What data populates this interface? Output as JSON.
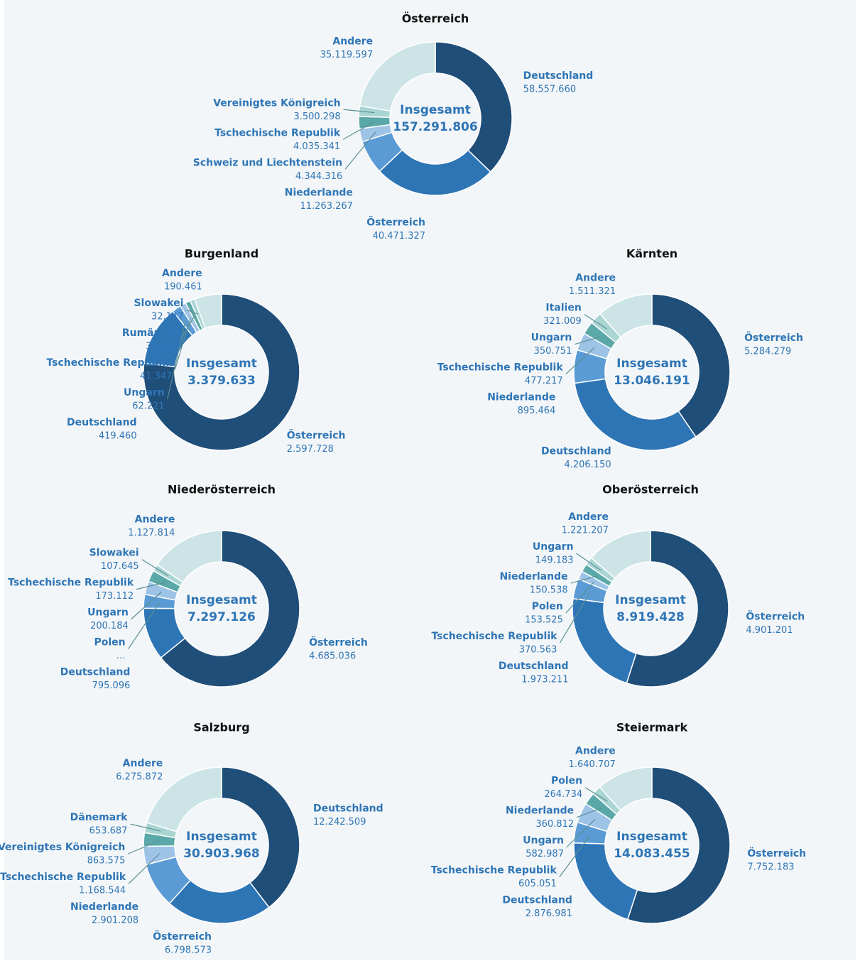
{
  "chart_data": [
    {
      "type": "pie",
      "title": "Österreich",
      "center_text": [
        "Insgesamt",
        "157.291.806"
      ],
      "categories": [
        "Deutschland",
        "Österreich",
        "Niederlande",
        "Schweiz und Liechtenstein",
        "Tschechische Republik",
        "Vereinigtes Königreich",
        "Andere"
      ],
      "values": [
        58557660,
        40471327,
        11263267,
        4344316,
        4035341,
        3500298,
        35119597
      ],
      "value_labels": [
        "58.557.660",
        "40.471.327",
        "11.263.267",
        "4.344.316",
        "4.035.341",
        "3.500.298",
        "35.119.597"
      ],
      "colors": [
        "#1f4e79",
        "#2e75b6",
        "#5b9bd5",
        "#9dc3e6",
        "#5ba8a8",
        "#a9d5d3",
        "#cde4e7"
      ]
    },
    {
      "type": "pie",
      "title": "Burgenland",
      "center_text": [
        "Insgesamt",
        "3.379.633"
      ],
      "categories": [
        "Österreich",
        "Deutschland",
        "Ungarn",
        "Tschechische Republik",
        "Rumänien",
        "Slowakei",
        "Andere"
      ],
      "values": [
        2597728,
        419460,
        62221,
        41347,
        36269,
        32147,
        190461
      ],
      "value_labels": [
        "2.597.728",
        "419.460",
        "62.221",
        "41.347",
        "36.269",
        "32.147",
        "190.461"
      ],
      "colors": [
        "#1f4e79",
        "#2e75b6",
        "#5b9bd5",
        "#9dc3e6",
        "#5ba8a8",
        "#a9d5d3",
        "#cde4e7"
      ]
    },
    {
      "type": "pie",
      "title": "Kärnten",
      "center_text": [
        "Insgesamt",
        "13.046.191"
      ],
      "categories": [
        "Österreich",
        "Deutschland",
        "Niederlande",
        "Tschechische Republik",
        "Ungarn",
        "Italien",
        "Andere"
      ],
      "values": [
        5284279,
        4206150,
        895464,
        477217,
        350751,
        321009,
        1511321
      ],
      "value_labels": [
        "5.284.279",
        "4.206.150",
        "895.464",
        "477.217",
        "350.751",
        "321.009",
        "1.511.321"
      ],
      "colors": [
        "#1f4e79",
        "#2e75b6",
        "#5b9bd5",
        "#9dc3e6",
        "#5ba8a8",
        "#a9d5d3",
        "#cde4e7"
      ]
    },
    {
      "type": "pie",
      "title": "Niederösterreich",
      "center_text": [
        "Insgesamt",
        "7.297.126"
      ],
      "categories": [
        "Österreich",
        "Deutschland",
        "Polen",
        "Ungarn",
        "Tschechische Republik",
        "Slowakei",
        "Andere"
      ],
      "values": [
        4685036,
        795096,
        208239,
        200184,
        173112,
        107645,
        1127814
      ],
      "value_labels": [
        "4.685.036",
        "795.096",
        "…",
        "200.184",
        "173.112",
        "107.645",
        "1.127.814"
      ],
      "colors": [
        "#1f4e79",
        "#2e75b6",
        "#5b9bd5",
        "#9dc3e6",
        "#5ba8a8",
        "#a9d5d3",
        "#cde4e7"
      ]
    },
    {
      "type": "pie",
      "title": "Oberösterreich",
      "center_text": [
        "Insgesamt",
        "8.919.428"
      ],
      "categories": [
        "Österreich",
        "Deutschland",
        "Tschechische Republik",
        "Polen",
        "Niederlande",
        "Ungarn",
        "Andere"
      ],
      "values": [
        4901201,
        1973211,
        370563,
        153525,
        150538,
        149183,
        1221207
      ],
      "value_labels": [
        "4.901.201",
        "1.973.211",
        "370.563",
        "153.525",
        "150.538",
        "149.183",
        "1.221.207"
      ],
      "colors": [
        "#1f4e79",
        "#2e75b6",
        "#5b9bd5",
        "#9dc3e6",
        "#5ba8a8",
        "#a9d5d3",
        "#cde4e7"
      ]
    },
    {
      "type": "pie",
      "title": "Salzburg",
      "center_text": [
        "Insgesamt",
        "30.903.968"
      ],
      "categories": [
        "Deutschland",
        "Österreich",
        "Niederlande",
        "Tschechische Republik",
        "Vereinigtes Königreich",
        "Dänemark",
        "Andere"
      ],
      "values": [
        12242509,
        6798573,
        2901208,
        1168544,
        863575,
        653687,
        6275872
      ],
      "value_labels": [
        "12.242.509",
        "6.798.573",
        "2.901.208",
        "1.168.544",
        "863.575",
        "653.687",
        "6.275.872"
      ],
      "colors": [
        "#1f4e79",
        "#2e75b6",
        "#5b9bd5",
        "#9dc3e6",
        "#5ba8a8",
        "#a9d5d3",
        "#cde4e7"
      ]
    },
    {
      "type": "pie",
      "title": "Steiermark",
      "center_text": [
        "Insgesamt",
        "14.083.455"
      ],
      "categories": [
        "Österreich",
        "Deutschland",
        "Tschechische Republik",
        "Ungarn",
        "Niederlande",
        "Polen",
        "Andere"
      ],
      "values": [
        7752183,
        2876981,
        605051,
        582987,
        360812,
        264734,
        1640707
      ],
      "value_labels": [
        "7.752.183",
        "2.876.981",
        "605.051",
        "582.987",
        "360.812",
        "264.734",
        "1.640.707"
      ],
      "colors": [
        "#1f4e79",
        "#2e75b6",
        "#5b9bd5",
        "#9dc3e6",
        "#5ba8a8",
        "#a9d5d3",
        "#cde4e7"
      ]
    }
  ]
}
